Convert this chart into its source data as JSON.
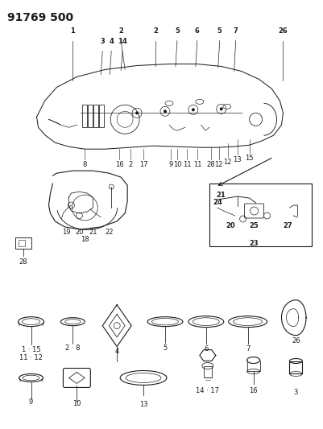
{
  "title": "91769 500",
  "bg_color": "#ffffff",
  "line_color": "#1a1a1a",
  "title_fontsize": 10,
  "title_weight": "bold",
  "fig_width": 4.01,
  "fig_height": 5.33,
  "dpi": 100
}
